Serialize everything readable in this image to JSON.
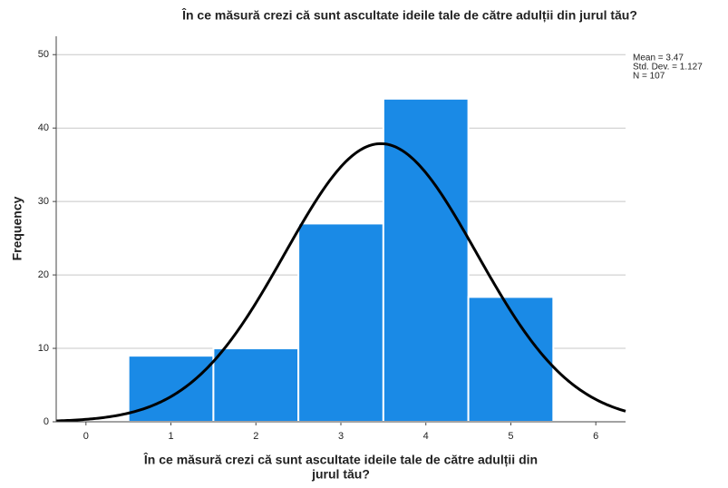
{
  "chart_data": {
    "type": "histogram",
    "title": "În ce măsură crezi că sunt ascultate ideile tale de către adulții din jurul tău?",
    "xlabel": [
      "În ce măsură crezi că sunt ascultate ideile tale de către adulții din",
      "jurul tău?"
    ],
    "ylabel": "Frequency",
    "bins": [
      0.5,
      1.5,
      2.5,
      3.5,
      4.5,
      5.5
    ],
    "counts": [
      9,
      10,
      27,
      44,
      17
    ],
    "color": "#1a8ae6",
    "curve_color": "#000000",
    "stats": [
      {
        "value": 3.47,
        "label": "Mean = 3.47"
      },
      {
        "value": 1.127,
        "label": "Std. Dev. = 1.127"
      },
      {
        "value": 107,
        "label": "N = 107"
      }
    ],
    "xlim": [
      -0.35,
      6.35
    ],
    "xticks": [
      0,
      1,
      2,
      3,
      4,
      5,
      6
    ],
    "ylim": [
      0,
      52.5
    ],
    "yticks": [
      0,
      10,
      20,
      30,
      40,
      50
    ],
    "grid": true
  }
}
